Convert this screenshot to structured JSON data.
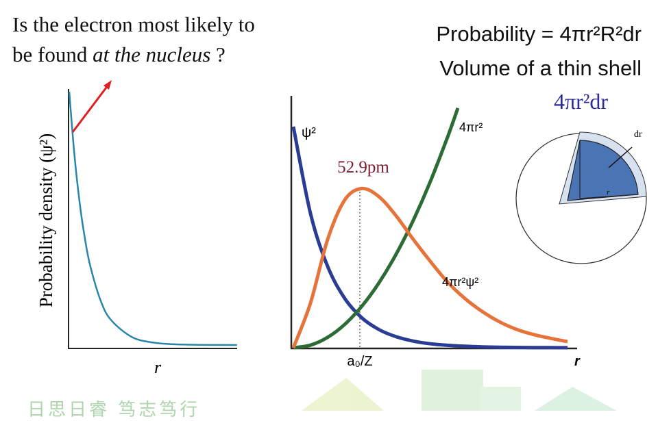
{
  "question": {
    "line1": "Is the electron most likely to",
    "line2_a": "be found ",
    "line2_em": "at the nucleus",
    "line2_b": " ?"
  },
  "formula": {
    "line1": "Probability = 4πr²R²dr",
    "line2": "Volume of a thin shell",
    "shell_volume": "4πr²dr",
    "dr_label": "dr",
    "r_label": "r"
  },
  "motto": "日思日睿 笃志笃行",
  "colors": {
    "psi2": "#2a3c94",
    "r2": "#2c6b35",
    "radial": "#e5733a",
    "left_curve": "#2a86a8",
    "arrow": "#e02020",
    "peak_label": "#7a1a2a",
    "sphere": "#4a74b4"
  },
  "chart_data": [
    {
      "type": "line",
      "title": "",
      "xlabel": "r",
      "ylabel": "Probability density (ψ²)",
      "series": [
        {
          "name": "ψ²",
          "x": [
            0,
            0.25,
            0.5,
            0.75,
            1,
            1.5,
            2,
            3,
            4,
            5,
            6,
            7,
            8
          ],
          "y": [
            1,
            0.748,
            0.56,
            0.419,
            0.313,
            0.175,
            0.098,
            0.031,
            0.0097,
            0.003,
            0.001,
            0.0003,
            0.0001
          ]
        }
      ],
      "xlim": [
        0,
        8
      ],
      "ylim": [
        0,
        1
      ],
      "grid": false
    },
    {
      "type": "line",
      "title": "",
      "xlabel": "r",
      "tick_label": "a₀/Z",
      "peak_label": "52.9pm",
      "peak_x": 1,
      "series": [
        {
          "name": "ψ²",
          "label": "ψ²",
          "x": [
            0,
            0.25,
            0.5,
            0.75,
            1,
            1.25,
            1.5,
            1.75,
            2,
            2.25,
            2.5,
            2.75,
            3,
            3.25,
            3.5,
            3.75,
            4
          ],
          "y": [
            1,
            0.607,
            0.368,
            0.223,
            0.135,
            0.082,
            0.05,
            0.03,
            0.018,
            0.011,
            0.0067,
            0.0041,
            0.0025,
            0.0015,
            0.0009,
            0.0006,
            0.0003
          ]
        },
        {
          "name": "4πr²",
          "label": "4πr²",
          "x": [
            0,
            0.25,
            0.5,
            0.75,
            1,
            1.25,
            1.5,
            1.75,
            2,
            2.25,
            2.4
          ],
          "y": [
            0,
            0.0625,
            0.25,
            0.5625,
            1,
            1.5625,
            2.25,
            3.0625,
            4,
            5.0625,
            5.76
          ]
        },
        {
          "name": "4πr²ψ²",
          "label": "4πr²ψ²",
          "x": [
            0,
            0.25,
            0.5,
            0.75,
            1,
            1.25,
            1.5,
            1.75,
            2,
            2.25,
            2.5,
            2.75,
            3,
            3.25,
            3.5,
            3.75,
            4
          ],
          "y": [
            0,
            0.152,
            0.368,
            0.502,
            0.541,
            0.513,
            0.448,
            0.368,
            0.293,
            0.223,
            0.168,
            0.124,
            0.089,
            0.063,
            0.045,
            0.032,
            0.021
          ]
        }
      ],
      "xlim": [
        0,
        4.15
      ],
      "grid": false
    }
  ]
}
